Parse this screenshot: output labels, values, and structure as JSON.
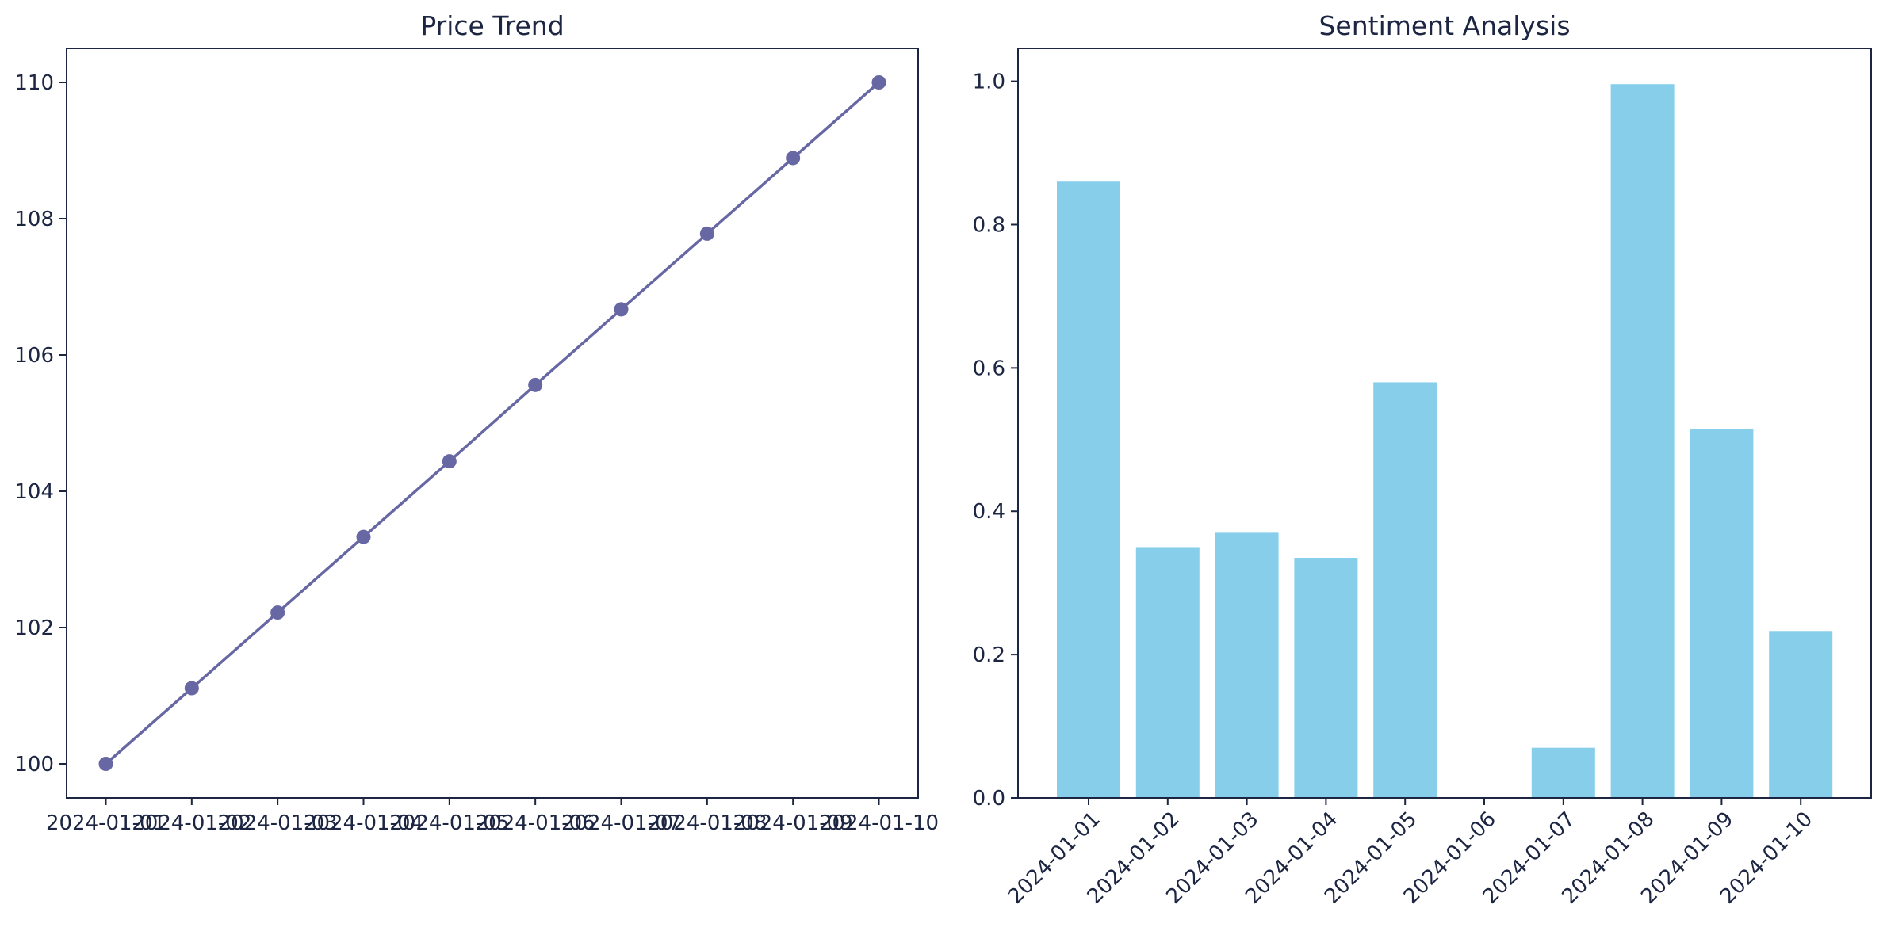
{
  "chart_data": [
    {
      "type": "line",
      "title": "Price Trend",
      "xlabel": "",
      "ylabel": "",
      "x": [
        "2024-01-01",
        "2024-01-02",
        "2024-01-03",
        "2024-01-04",
        "2024-01-05",
        "2024-01-06",
        "2024-01-07",
        "2024-01-08",
        "2024-01-09",
        "2024-01-10"
      ],
      "values": [
        100.0,
        101.11,
        102.22,
        103.33,
        104.44,
        105.56,
        106.67,
        107.78,
        108.89,
        110.0
      ],
      "ylim": [
        99.5,
        110.5
      ],
      "yticks": [
        100,
        102,
        104,
        106,
        108,
        110
      ],
      "ytick_labels": [
        "100",
        "102",
        "104",
        "106",
        "108",
        "110"
      ],
      "color": "#6667a3",
      "marker": "circle",
      "grid": false
    },
    {
      "type": "bar",
      "title": "Sentiment Analysis",
      "xlabel": "",
      "ylabel": "",
      "categories": [
        "2024-01-01",
        "2024-01-02",
        "2024-01-03",
        "2024-01-04",
        "2024-01-05",
        "2024-01-06",
        "2024-01-07",
        "2024-01-08",
        "2024-01-09",
        "2024-01-10"
      ],
      "values": [
        0.86,
        0.35,
        0.37,
        0.335,
        0.58,
        0.0,
        0.07,
        0.996,
        0.515,
        0.233
      ],
      "ylim": [
        0,
        1.046
      ],
      "yticks": [
        0.0,
        0.2,
        0.4,
        0.6,
        0.8,
        1.0
      ],
      "ytick_labels": [
        "0.0",
        "0.2",
        "0.4",
        "0.6",
        "0.8",
        "1.0"
      ],
      "xtick_rotation": 45,
      "color": "#87ceeb",
      "grid": false
    }
  ]
}
